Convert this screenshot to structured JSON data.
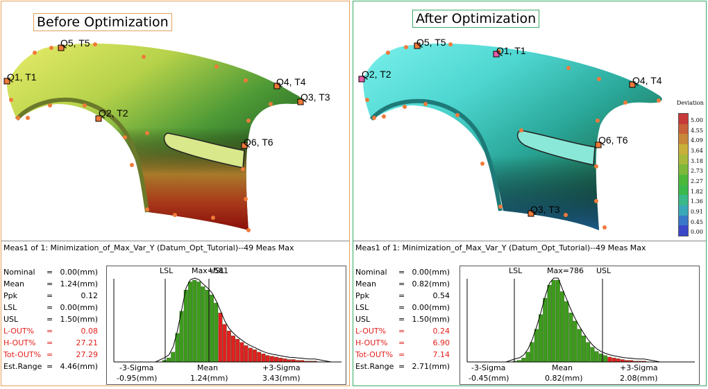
{
  "left": {
    "title": "Before Optimization",
    "header": "Meas1 of 1: Minimization_of_Max_Var_Y (Datum_Opt_Tutorial)--49 Meas Max",
    "stats": [
      {
        "label": "Nominal",
        "eq": "=",
        "value": "0.00(mm)",
        "red": false
      },
      {
        "label": "Mean",
        "eq": "=",
        "value": "1.24(mm)",
        "red": false
      },
      {
        "label": "Ppk",
        "eq": "=",
        "value": "0.12",
        "red": false
      },
      {
        "label": "LSL",
        "eq": "=",
        "value": "0.00(mm)",
        "red": false
      },
      {
        "label": "USL",
        "eq": "=",
        "value": "1.50(mm)",
        "red": false
      },
      {
        "label": "L-OUT%",
        "eq": "=",
        "value": "0.08",
        "red": true
      },
      {
        "label": "H-OUT%",
        "eq": "=",
        "value": "27.21",
        "red": true
      },
      {
        "label": "Tot-OUT%",
        "eq": "=",
        "value": "27.29",
        "red": true
      },
      {
        "label": "Est.Range",
        "eq": "=",
        "value": "4.46(mm)",
        "red": false
      }
    ],
    "points": [
      "Q1, T1",
      "Q2, T2",
      "Q4, T4",
      "Q3, T3",
      "Q5, T5",
      "Q6, T6"
    ],
    "hist": {
      "lsl": "LSL",
      "max": "Max=581",
      "usl": "USL",
      "minus3": "-3-Sigma",
      "mean": "Mean",
      "plus3": "+3-Sigma",
      "minus3_val": "-0.95(mm)",
      "mean_val": "1.24(mm)",
      "plus3_val": "3.43(mm)"
    }
  },
  "right": {
    "title": "After Optimization",
    "header": "Meas1 of 1: Minimization_of_Max_Var_Y (Datum_Opt_Tutorial)--49 Meas Max",
    "stats": [
      {
        "label": "Nominal",
        "eq": "=",
        "value": "0.00(mm)",
        "red": false
      },
      {
        "label": "Mean",
        "eq": "=",
        "value": "0.82(mm)",
        "red": false
      },
      {
        "label": "Ppk",
        "eq": "=",
        "value": "0.54",
        "red": false
      },
      {
        "label": "LSL",
        "eq": "=",
        "value": "0.00(mm)",
        "red": false
      },
      {
        "label": "USL",
        "eq": "=",
        "value": "1.50(mm)",
        "red": false
      },
      {
        "label": "L-OUT%",
        "eq": "=",
        "value": "0.24",
        "red": true
      },
      {
        "label": "H-OUT%",
        "eq": "=",
        "value": "6.90",
        "red": true
      },
      {
        "label": "Tot-OUT%",
        "eq": "=",
        "value": "7.14",
        "red": true
      },
      {
        "label": "Est.Range",
        "eq": "=",
        "value": "2.71(mm)",
        "red": false
      }
    ],
    "points": [
      "Q5, T5",
      "Q1, T1",
      "Q2, T2",
      "Q4, T4",
      "Q6, T6",
      "Q3, T3"
    ],
    "hist": {
      "lsl": "LSL",
      "max": "Max=786",
      "usl": "USL",
      "minus3": "-3-Sigma",
      "mean": "Mean",
      "plus3": "+3-Sigma",
      "minus3_val": "-0.45(mm)",
      "mean_val": "0.82(mm)",
      "plus3_val": "2.08(mm)"
    },
    "legend": {
      "title": "Deviation",
      "labels": [
        "5.00",
        "4.55",
        "4.09",
        "3.64",
        "3.18",
        "2.73",
        "2.27",
        "1.82",
        "1.36",
        "0.91",
        "0.45",
        "0.00"
      ],
      "colors": [
        "#c83a3a",
        "#c8603a",
        "#c8883a",
        "#c8b03a",
        "#a8b83a",
        "#7cb83a",
        "#4cb83a",
        "#3ab84c",
        "#3ab888",
        "#3aa8b8",
        "#3a78c8",
        "#3a48c8"
      ]
    }
  },
  "chart_data": [
    {
      "type": "bar",
      "title": "Before Optimization",
      "categories_note": "deviation bins",
      "values": [
        2,
        5,
        12,
        35,
        62,
        88,
        98,
        100,
        98,
        92,
        88,
        82,
        72,
        60,
        46,
        38,
        32,
        28,
        24,
        20,
        17,
        15,
        12,
        10,
        8,
        7,
        6,
        5,
        4,
        3,
        3,
        2,
        2,
        1,
        1,
        1
      ],
      "lsl": 0.0,
      "usl": 1.5,
      "mean": 1.24,
      "minus3sigma": -0.95,
      "plus3sigma": 3.43,
      "colors": {
        "in_spec": "#3d9b1c",
        "out_spec": "#e02020"
      }
    },
    {
      "type": "bar",
      "title": "After Optimization",
      "values": [
        1,
        2,
        5,
        12,
        24,
        40,
        58,
        78,
        94,
        100,
        100,
        86,
        74,
        60,
        50,
        40,
        32,
        24,
        18,
        13,
        10,
        8,
        6,
        5,
        4,
        3,
        2,
        2,
        1,
        1,
        1
      ],
      "lsl": 0.0,
      "usl": 1.5,
      "mean": 0.82,
      "minus3sigma": -0.45,
      "plus3sigma": 2.08,
      "colors": {
        "in_spec": "#3d9b1c",
        "out_spec": "#e02020"
      }
    }
  ]
}
